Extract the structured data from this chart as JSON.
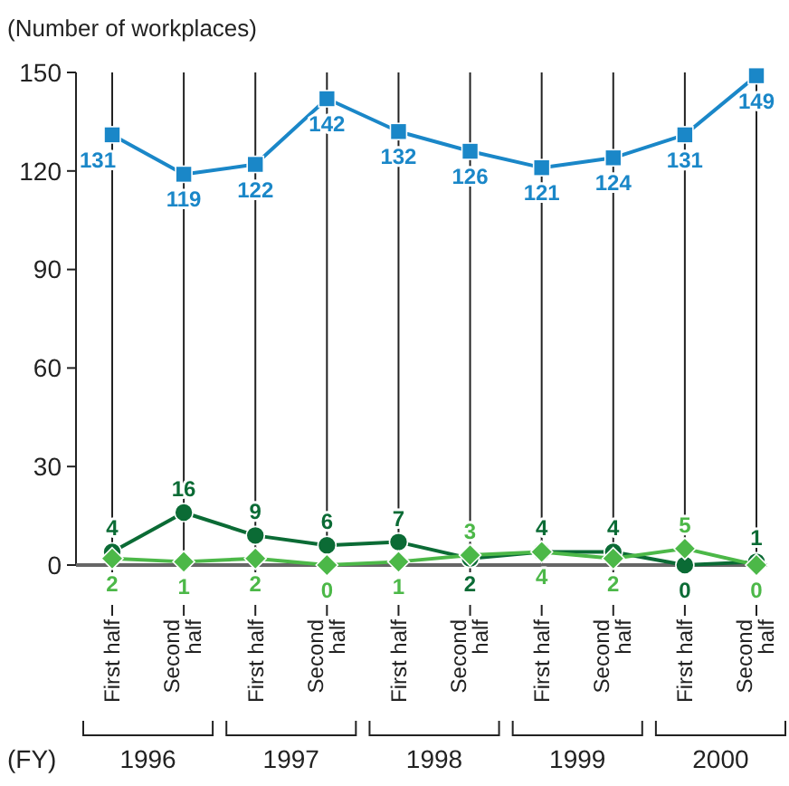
{
  "chart_data": {
    "type": "line",
    "ylabel": "(Number of workplaces)",
    "categories": [
      "First half",
      "Second half",
      "First half",
      "Second half",
      "First half",
      "Second half",
      "First half",
      "Second half",
      "First half",
      "Second half"
    ],
    "series": [
      {
        "color": "#1a87c8",
        "marker": "square",
        "values": [
          131,
          119,
          122,
          142,
          132,
          126,
          121,
          124,
          131,
          149
        ]
      },
      {
        "color": "#0b6b35",
        "marker": "circle",
        "values": [
          4,
          16,
          9,
          6,
          7,
          2,
          4,
          4,
          0,
          1
        ]
      },
      {
        "color": "#4cb848",
        "marker": "diamond",
        "values": [
          2,
          1,
          2,
          0,
          1,
          3,
          4,
          2,
          5,
          0
        ]
      }
    ],
    "ylim": [
      0,
      150
    ],
    "yticks": [
      0,
      30,
      60,
      90,
      120,
      150
    ],
    "grid": "x",
    "data_labels": true,
    "annotations": [
      "(FY)",
      "1996",
      "1997",
      "1998",
      "1999",
      "2000"
    ]
  }
}
